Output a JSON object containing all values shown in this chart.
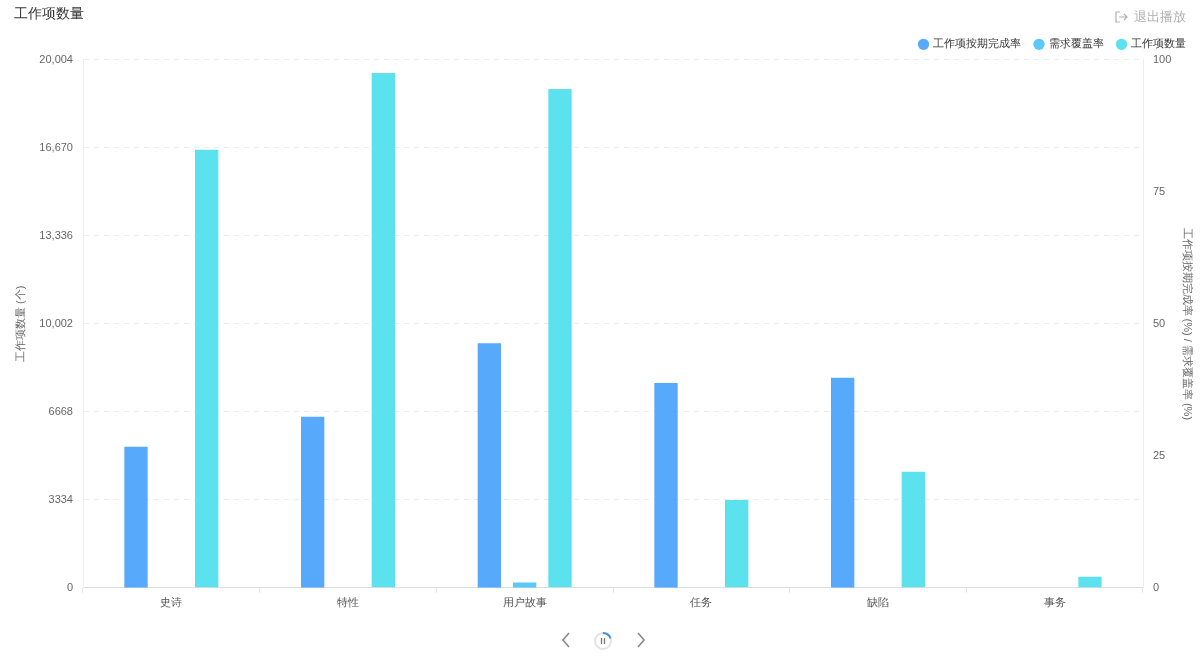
{
  "chart_data": {
    "type": "bar",
    "title": "工作项数量",
    "ylabel": "工作项数量 (个)",
    "y2label": "工作项按期完成率 (%) / 需求覆盖率 (%)",
    "categories": [
      "史诗",
      "特性",
      "用户故事",
      "任务",
      "缺陷",
      "事务"
    ],
    "series": [
      {
        "name": "工作项按期完成率",
        "color": "#57a9fb",
        "axis": "y2",
        "values": [
          26.7,
          32.4,
          46.3,
          38.8,
          39.8,
          0
        ]
      },
      {
        "name": "需求覆盖率",
        "color": "#5ac8fa",
        "axis": "y2",
        "values": [
          0,
          0,
          1.0,
          0,
          0,
          0
        ]
      },
      {
        "name": "工作项数量",
        "color": "#5be2ee",
        "values": [
          16600,
          19500,
          18900,
          3330,
          4400,
          420
        ]
      }
    ],
    "ylim": [
      0,
      20004
    ],
    "yticks": [
      0,
      3334,
      6668,
      {
        "value": 10002,
        "label": "10,002"
      },
      {
        "value": 13336,
        "label": "13,336"
      },
      {
        "value": 16670,
        "label": "16,670"
      },
      {
        "value": 20004,
        "label": "20,004"
      }
    ],
    "y2lim": [
      0,
      100
    ],
    "y2ticks": [
      0,
      25,
      50,
      75,
      100
    ],
    "grid": "y",
    "legend": "top right",
    "annotations": [
      "退出播放"
    ]
  }
}
